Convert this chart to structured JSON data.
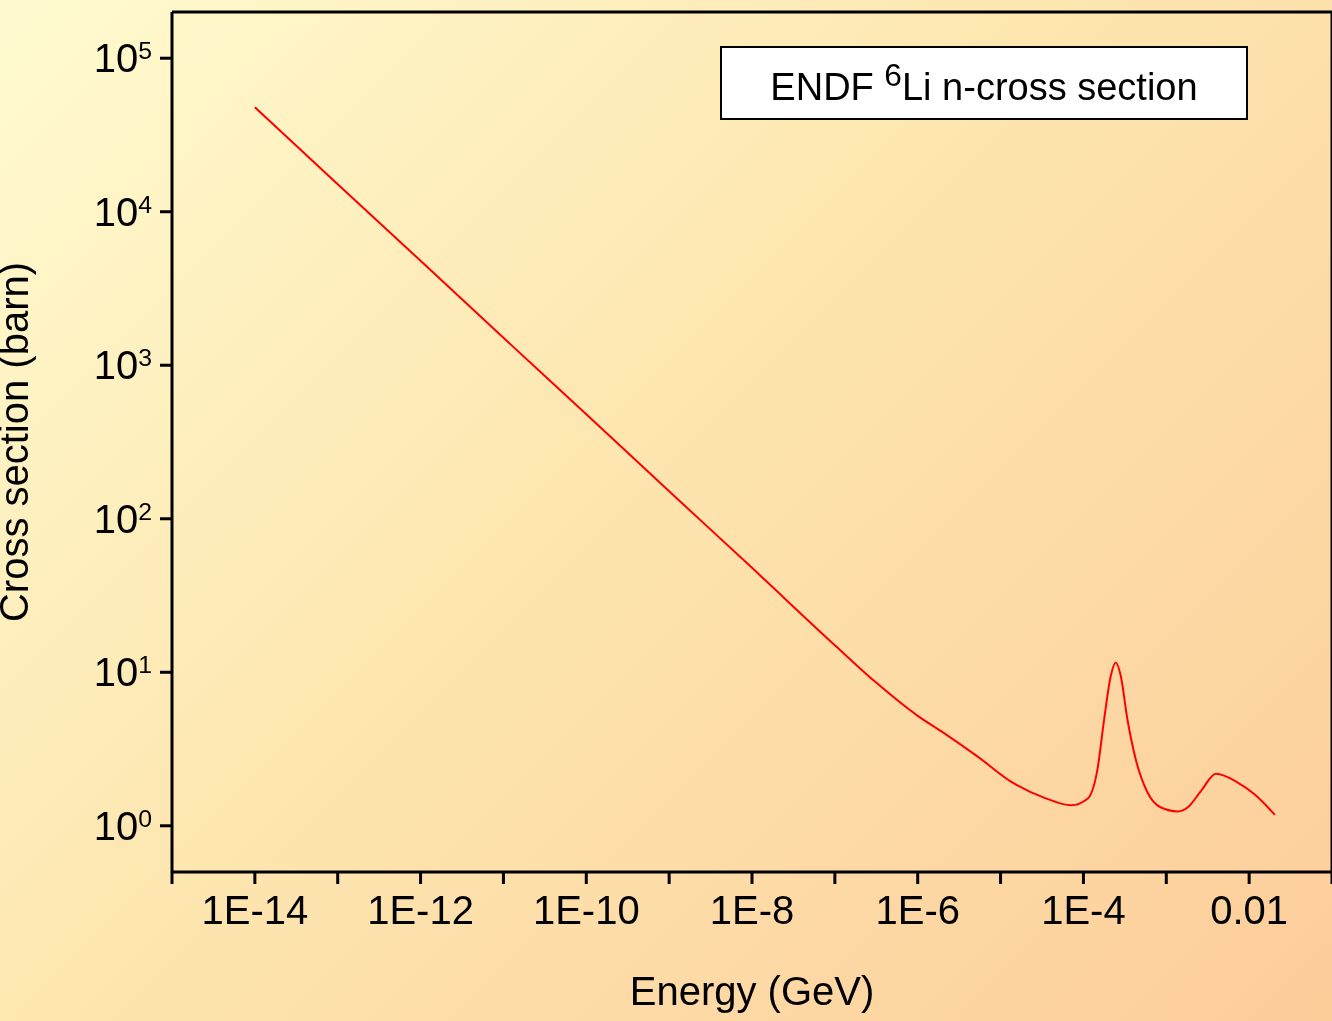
{
  "chart_data": {
    "type": "line",
    "title": "ENDF $^{6}$Li n-cross section",
    "xlabel": "Energy (GeV)",
    "ylabel": "Cross section (barn)",
    "log": "xy",
    "grid": false,
    "legend": false,
    "marker": "none",
    "line_style": "solid",
    "xlim": [
      1e-15,
      0.1
    ],
    "ylim": [
      0.5,
      200000
    ],
    "xticks": [
      {
        "value": 1e-15,
        "label": null
      },
      {
        "value": 1e-14,
        "label": "1E-14"
      },
      {
        "value": 1e-13,
        "label": null
      },
      {
        "value": 1e-12,
        "label": "1E-12"
      },
      {
        "value": 1e-11,
        "label": null
      },
      {
        "value": 1e-10,
        "label": "1E-10"
      },
      {
        "value": 1e-09,
        "label": null
      },
      {
        "value": 1e-08,
        "label": "1E-8"
      },
      {
        "value": 1e-07,
        "label": null
      },
      {
        "value": 1e-06,
        "label": "1E-6"
      },
      {
        "value": 1e-05,
        "label": null
      },
      {
        "value": 0.0001,
        "label": "1E-4"
      },
      {
        "value": 0.001,
        "label": null
      },
      {
        "value": 0.01,
        "label": "0.01"
      },
      {
        "value": 0.1,
        "label": null
      }
    ],
    "yticks": [
      {
        "value": 1,
        "label": "10$^{0}$"
      },
      {
        "value": 10,
        "label": "10$^{1}$"
      },
      {
        "value": 100,
        "label": "10$^{2}$"
      },
      {
        "value": 1000,
        "label": "10$^{3}$"
      },
      {
        "value": 10000,
        "label": "10$^{4}$"
      },
      {
        "value": 100000,
        "label": "10$^{5}$"
      }
    ],
    "series": [
      {
        "color": "#ff0000",
        "x": [
          1e-14,
          1e-13,
          1e-12,
          1e-11,
          1e-10,
          1e-09,
          1e-08,
          1e-07,
          3.2e-07,
          1e-06,
          2.1e-06,
          5.4e-06,
          1.35e-05,
          3.4e-05,
          7.1e-05,
          0.000112,
          0.000148,
          0.000178,
          0.000214,
          0.000245,
          0.000282,
          0.000339,
          0.000427,
          0.00059,
          0.00085,
          0.00138,
          0.00182,
          0.00263,
          0.00398,
          0.0072,
          0.0115,
          0.0204
        ],
        "values": [
          47900,
          15100,
          4790,
          1510,
          479,
          151,
          47.9,
          15.0,
          8.5,
          5.2,
          4.0,
          2.8,
          1.93,
          1.52,
          1.36,
          1.5,
          2.35,
          4.96,
          9.5,
          11.6,
          9.5,
          4.96,
          2.72,
          1.66,
          1.32,
          1.24,
          1.32,
          1.69,
          2.18,
          1.92,
          1.61,
          1.18
        ]
      }
    ]
  }
}
